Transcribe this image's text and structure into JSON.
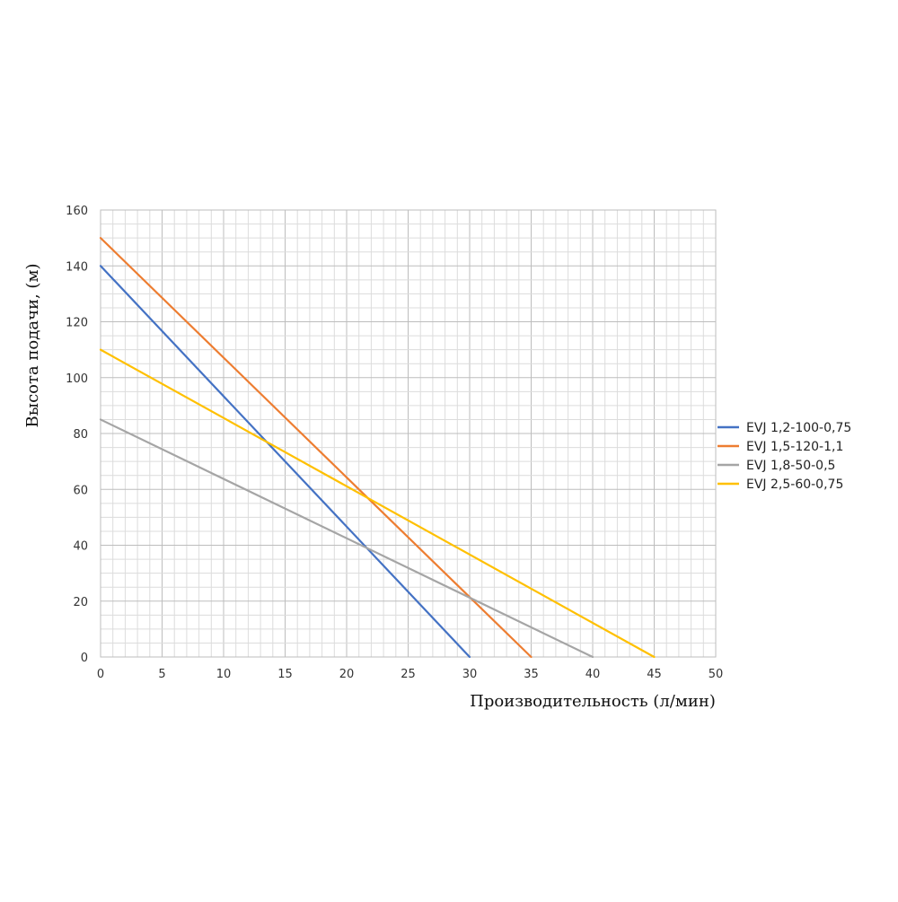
{
  "chart_data": {
    "type": "line",
    "title": "",
    "xlabel": "Производительность (л/мин)",
    "ylabel": "Высота подачи, (м)",
    "xlim": [
      0,
      50
    ],
    "ylim": [
      0,
      160
    ],
    "x_ticks": [
      0,
      5,
      10,
      15,
      20,
      25,
      30,
      35,
      40,
      45,
      50
    ],
    "y_ticks": [
      0,
      20,
      40,
      60,
      80,
      100,
      120,
      140,
      160
    ],
    "minor_x_step": 1,
    "minor_y_step": 5,
    "grid": true,
    "legend_position": "right",
    "series": [
      {
        "name": "EVJ 1,2-100-0,75",
        "color": "#4472C4",
        "x": [
          0,
          30
        ],
        "y": [
          140,
          0
        ]
      },
      {
        "name": "EVJ 1,5-120-1,1",
        "color": "#ED7D31",
        "x": [
          0,
          35
        ],
        "y": [
          150,
          0
        ]
      },
      {
        "name": "EVJ 1,8-50-0,5",
        "color": "#A5A5A5",
        "x": [
          0,
          40
        ],
        "y": [
          85,
          0
        ]
      },
      {
        "name": "EVJ 2,5-60-0,75",
        "color": "#FFC000",
        "x": [
          0,
          45
        ],
        "y": [
          110,
          0
        ]
      }
    ]
  }
}
